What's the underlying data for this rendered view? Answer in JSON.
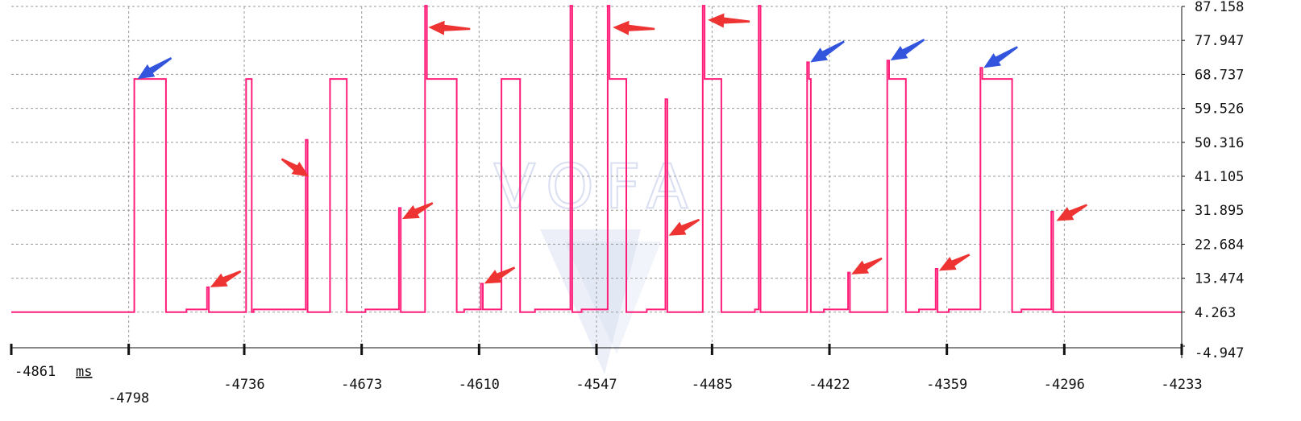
{
  "chart_data": {
    "type": "line",
    "xunit": "ms",
    "x_ticks": [
      -4861,
      -4798,
      -4736,
      -4673,
      -4610,
      -4547,
      -4485,
      -4422,
      -4359,
      -4296,
      -4233
    ],
    "y_ticks": [
      87.158,
      77.947,
      68.737,
      59.526,
      50.316,
      41.105,
      31.895,
      22.684,
      13.474,
      4.263,
      -4.947
    ],
    "xlim": [
      -4861,
      -4233
    ],
    "ylim": [
      -4.947,
      87.158
    ],
    "grid": true,
    "colors": {
      "line": "#ff1f7a",
      "grid": "#9a9a9a",
      "arrow_red": "#ee3333",
      "arrow_blue": "#3355dd",
      "watermark": "#c9d2ec"
    },
    "watermark": "VOFA",
    "series": [
      {
        "points": [
          [
            -4861,
            4.263
          ],
          [
            -4795,
            4.263
          ],
          [
            -4795,
            67.5
          ],
          [
            -4778,
            67.5
          ],
          [
            -4778,
            4.263
          ],
          [
            -4767,
            4.263
          ],
          [
            -4767,
            5.0
          ],
          [
            -4756,
            5.0
          ],
          [
            -4756,
            11.0
          ],
          [
            -4755,
            11.0
          ],
          [
            -4755,
            4.263
          ],
          [
            -4735,
            4.263
          ],
          [
            -4735,
            67.5
          ],
          [
            -4732,
            67.5
          ],
          [
            -4732,
            4.263
          ],
          [
            -4731,
            4.263
          ],
          [
            -4731,
            5.0
          ],
          [
            -4717,
            5.0
          ],
          [
            -4717,
            5.0
          ],
          [
            -4717,
            5.0
          ],
          [
            -4703,
            5.0
          ],
          [
            -4703,
            51.0
          ],
          [
            -4702,
            51.0
          ],
          [
            -4702,
            4.263
          ],
          [
            -4690,
            4.263
          ],
          [
            -4690,
            67.5
          ],
          [
            -4681,
            67.5
          ],
          [
            -4681,
            4.263
          ],
          [
            -4671,
            4.263
          ],
          [
            -4671,
            5.0
          ],
          [
            -4653,
            5.0
          ],
          [
            -4653,
            32.5
          ],
          [
            -4652,
            32.5
          ],
          [
            -4652,
            4.263
          ],
          [
            -4639,
            4.263
          ],
          [
            -4639,
            90.0
          ],
          [
            -4638,
            90.0
          ],
          [
            -4638,
            67.5
          ],
          [
            -4622,
            67.5
          ],
          [
            -4622,
            4.263
          ],
          [
            -4618,
            4.263
          ],
          [
            -4618,
            5.0
          ],
          [
            -4609,
            5.0
          ],
          [
            -4609,
            12.0
          ],
          [
            -4608,
            12.0
          ],
          [
            -4608,
            5.0
          ],
          [
            -4598,
            5.0
          ],
          [
            -4598,
            67.5
          ],
          [
            -4588,
            67.5
          ],
          [
            -4588,
            4.263
          ],
          [
            -4580,
            4.263
          ],
          [
            -4580,
            5.0
          ],
          [
            -4561,
            5.0
          ],
          [
            -4561,
            90.0
          ],
          [
            -4560,
            90.0
          ],
          [
            -4560,
            4.263
          ],
          [
            -4555,
            4.263
          ],
          [
            -4555,
            5.0
          ],
          [
            -4541,
            5.0
          ],
          [
            -4541,
            90.0
          ],
          [
            -4540,
            90.0
          ],
          [
            -4540,
            67.5
          ],
          [
            -4531,
            67.5
          ],
          [
            -4531,
            4.263
          ],
          [
            -4520,
            4.263
          ],
          [
            -4520,
            5.0
          ],
          [
            -4510,
            5.0
          ],
          [
            -4510,
            62.0
          ],
          [
            -4509,
            62.0
          ],
          [
            -4509,
            4.263
          ],
          [
            -4490,
            4.263
          ],
          [
            -4490,
            90.0
          ],
          [
            -4489,
            90.0
          ],
          [
            -4489,
            67.5
          ],
          [
            -4480,
            67.5
          ],
          [
            -4480,
            4.263
          ],
          [
            -4462,
            4.263
          ],
          [
            -4462,
            5.0
          ],
          [
            -4460,
            5.0
          ],
          [
            -4460,
            90.0
          ],
          [
            -4459,
            90.0
          ],
          [
            -4459,
            4.263
          ],
          [
            -4434,
            4.263
          ],
          [
            -4434,
            72.0
          ],
          [
            -4433,
            72.0
          ],
          [
            -4433,
            67.5
          ],
          [
            -4432,
            67.5
          ],
          [
            -4432,
            4.263
          ],
          [
            -4425,
            4.263
          ],
          [
            -4425,
            5.0
          ],
          [
            -4412,
            5.0
          ],
          [
            -4412,
            15.0
          ],
          [
            -4411,
            15.0
          ],
          [
            -4411,
            4.263
          ],
          [
            -4391,
            4.263
          ],
          [
            -4391,
            72.5
          ],
          [
            -4390,
            72.5
          ],
          [
            -4390,
            67.5
          ],
          [
            -4381,
            67.5
          ],
          [
            -4381,
            4.263
          ],
          [
            -4374,
            4.263
          ],
          [
            -4374,
            5.0
          ],
          [
            -4365,
            5.0
          ],
          [
            -4365,
            16.0
          ],
          [
            -4364,
            16.0
          ],
          [
            -4364,
            4.263
          ],
          [
            -4358,
            4.263
          ],
          [
            -4358,
            5.0
          ],
          [
            -4341,
            5.0
          ],
          [
            -4341,
            70.5
          ],
          [
            -4340,
            70.5
          ],
          [
            -4340,
            67.5
          ],
          [
            -4324,
            67.5
          ],
          [
            -4324,
            4.263
          ],
          [
            -4319,
            4.263
          ],
          [
            -4319,
            5.0
          ],
          [
            -4303,
            5.0
          ],
          [
            -4303,
            31.5
          ],
          [
            -4302,
            31.5
          ],
          [
            -4302,
            4.263
          ],
          [
            -4233,
            4.263
          ]
        ]
      }
    ],
    "annotation_arrows": [
      {
        "color": "blue",
        "x": -4795,
        "y": 67.5
      },
      {
        "color": "red",
        "x": -4756,
        "y": 11.0
      },
      {
        "color": "red",
        "x": -4703,
        "y": 41.0
      },
      {
        "color": "red",
        "x": -4653,
        "y": 29.5
      },
      {
        "color": "red",
        "x": -4639,
        "y": 81.5
      },
      {
        "color": "red",
        "x": -4609,
        "y": 12.0
      },
      {
        "color": "red",
        "x": -4540,
        "y": 81.5
      },
      {
        "color": "red",
        "x": -4510,
        "y": 25.0
      },
      {
        "color": "red",
        "x": -4489,
        "y": 83.5
      },
      {
        "color": "blue",
        "x": -4434,
        "y": 72.0
      },
      {
        "color": "red",
        "x": -4412,
        "y": 14.5
      },
      {
        "color": "blue",
        "x": -4391,
        "y": 72.5
      },
      {
        "color": "red",
        "x": -4365,
        "y": 15.5
      },
      {
        "color": "blue",
        "x": -4341,
        "y": 70.5
      },
      {
        "color": "red",
        "x": -4302,
        "y": 29.0
      }
    ]
  }
}
